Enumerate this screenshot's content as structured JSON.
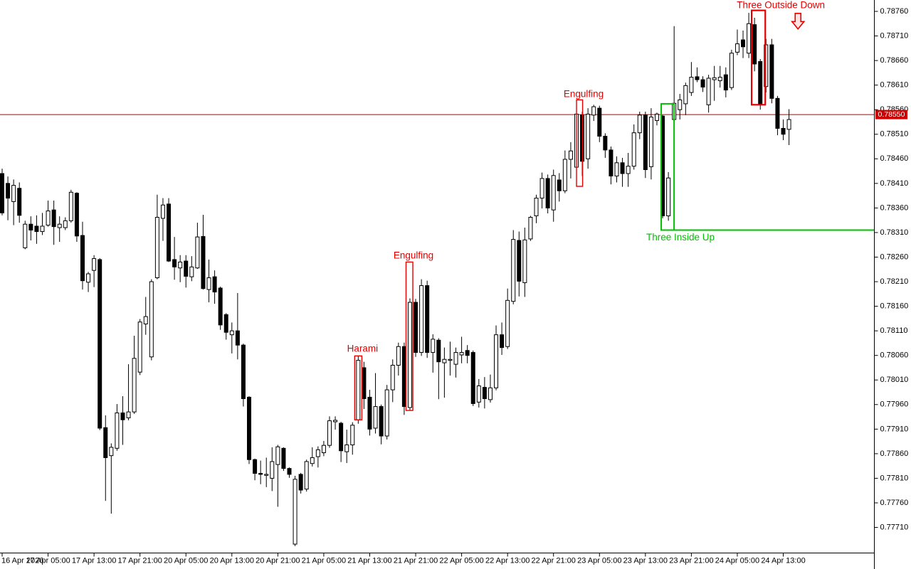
{
  "chart_data": {
    "type": "candlestick",
    "title": "",
    "current_price": {
      "value": 0.7855,
      "label": "0.78550",
      "line_color": "#b50000",
      "badge_bg": "#cc0000",
      "badge_fg": "#ffffff"
    },
    "support_ray": {
      "price": 0.78315,
      "color": "#00c000"
    },
    "y_axis": {
      "max": 0.7876,
      "min": 0.7771,
      "tick_step": 0.0005,
      "decimals": 5,
      "side": "right"
    },
    "x_ticks": [
      {
        "index": 0,
        "label": "16 Apr 2026"
      },
      {
        "index": 8,
        "label": "17 Apr 05:00"
      },
      {
        "index": 16,
        "label": "17 Apr 13:00"
      },
      {
        "index": 24,
        "label": "17 Apr 21:00"
      },
      {
        "index": 32,
        "label": "20 Apr 05:00"
      },
      {
        "index": 40,
        "label": "20 Apr 13:00"
      },
      {
        "index": 48,
        "label": "20 Apr 21:00"
      },
      {
        "index": 56,
        "label": "21 Apr 05:00"
      },
      {
        "index": 64,
        "label": "21 Apr 13:00"
      },
      {
        "index": 72,
        "label": "21 Apr 21:00"
      },
      {
        "index": 80,
        "label": "22 Apr 05:00"
      },
      {
        "index": 88,
        "label": "22 Apr 13:00"
      },
      {
        "index": 96,
        "label": "22 Apr 21:00"
      },
      {
        "index": 104,
        "label": "23 Apr 05:00"
      },
      {
        "index": 112,
        "label": "23 Apr 13:00"
      },
      {
        "index": 120,
        "label": "23 Apr 21:00"
      },
      {
        "index": 128,
        "label": "24 Apr 05:00"
      },
      {
        "index": 136,
        "label": "24 Apr 13:00"
      }
    ],
    "colors": {
      "bull_fill": "#ffffff",
      "bear_fill": "#000000",
      "outline": "#000000",
      "axis": "#000000",
      "pattern_red": "#e60000",
      "pattern_green": "#00c000"
    },
    "candles": [
      [
        0.7843,
        0.7844,
        0.78345,
        0.7835
      ],
      [
        0.7841,
        0.78424,
        0.78335,
        0.7838
      ],
      [
        0.78373,
        0.78418,
        0.78325,
        0.78406
      ],
      [
        0.784,
        0.78412,
        0.7833,
        0.78345
      ],
      [
        0.78279,
        0.78334,
        0.78276,
        0.78327
      ],
      [
        0.78327,
        0.78343,
        0.78294,
        0.78315
      ],
      [
        0.78323,
        0.78345,
        0.78287,
        0.78312
      ],
      [
        0.78312,
        0.7835,
        0.78305,
        0.78323
      ],
      [
        0.78325,
        0.78375,
        0.78322,
        0.78354
      ],
      [
        0.78356,
        0.78375,
        0.78285,
        0.78322
      ],
      [
        0.7832,
        0.78343,
        0.78291,
        0.78327
      ],
      [
        0.7832,
        0.78341,
        0.78315,
        0.78334
      ],
      [
        0.78334,
        0.78397,
        0.7833,
        0.78392
      ],
      [
        0.7839,
        0.78392,
        0.78291,
        0.78303
      ],
      [
        0.78304,
        0.78332,
        0.78194,
        0.78212
      ],
      [
        0.78209,
        0.7823,
        0.78189,
        0.78226
      ],
      [
        0.78233,
        0.78264,
        0.78199,
        0.78257
      ],
      [
        0.78255,
        0.78258,
        0.77908,
        0.77912
      ],
      [
        0.77913,
        0.77938,
        0.77764,
        0.77852
      ],
      [
        0.77856,
        0.77881,
        0.77738,
        0.77873
      ],
      [
        0.77871,
        0.77961,
        0.77866,
        0.77943
      ],
      [
        0.77943,
        0.77977,
        0.77878,
        0.77929
      ],
      [
        0.77933,
        0.78042,
        0.77928,
        0.77945
      ],
      [
        0.77945,
        0.781,
        0.77941,
        0.78054
      ],
      [
        0.78026,
        0.78134,
        0.7802,
        0.78128
      ],
      [
        0.78124,
        0.78179,
        0.78102,
        0.78139
      ],
      [
        0.78057,
        0.78215,
        0.7805,
        0.7821
      ],
      [
        0.78218,
        0.78387,
        0.78215,
        0.78341
      ],
      [
        0.78339,
        0.7838,
        0.78293,
        0.78366
      ],
      [
        0.78368,
        0.7838,
        0.7825,
        0.78252
      ],
      [
        0.78255,
        0.78301,
        0.78214,
        0.7824
      ],
      [
        0.78238,
        0.78264,
        0.78209,
        0.7825
      ],
      [
        0.78252,
        0.78264,
        0.78198,
        0.78221
      ],
      [
        0.7822,
        0.78262,
        0.78211,
        0.7824
      ],
      [
        0.78238,
        0.7833,
        0.78236,
        0.78301
      ],
      [
        0.78302,
        0.78346,
        0.78194,
        0.78196
      ],
      [
        0.78194,
        0.78255,
        0.78168,
        0.78218
      ],
      [
        0.7822,
        0.78233,
        0.78165,
        0.78189
      ],
      [
        0.78197,
        0.782,
        0.78112,
        0.78122
      ],
      [
        0.78143,
        0.78146,
        0.78092,
        0.78107
      ],
      [
        0.78102,
        0.78127,
        0.78064,
        0.7811
      ],
      [
        0.7811,
        0.78187,
        0.78052,
        0.78081
      ],
      [
        0.78081,
        0.78084,
        0.77956,
        0.77972
      ],
      [
        0.77975,
        0.77977,
        0.77839,
        0.77848
      ],
      [
        0.77848,
        0.7785,
        0.77806,
        0.7782
      ],
      [
        0.7782,
        0.77846,
        0.77798,
        0.77818
      ],
      [
        0.77816,
        0.77852,
        0.77792,
        0.77818
      ],
      [
        0.7781,
        0.77873,
        0.77784,
        0.77844
      ],
      [
        0.77838,
        0.77878,
        0.77752,
        0.77874
      ],
      [
        0.77871,
        0.77873,
        0.77825,
        0.7783
      ],
      [
        0.7783,
        0.77832,
        0.77811,
        0.77818
      ],
      [
        0.77676,
        0.77815,
        0.77672,
        0.77808
      ],
      [
        0.77818,
        0.77821,
        0.77779,
        0.77786
      ],
      [
        0.77788,
        0.77848,
        0.77783,
        0.77844
      ],
      [
        0.7784,
        0.77873,
        0.77834,
        0.77852
      ],
      [
        0.77854,
        0.77875,
        0.77832,
        0.77868
      ],
      [
        0.77862,
        0.77886,
        0.77855,
        0.77877
      ],
      [
        0.77877,
        0.77936,
        0.77872,
        0.77927
      ],
      [
        0.77925,
        0.77936,
        0.77909,
        0.77928
      ],
      [
        0.77922,
        0.77925,
        0.77843,
        0.77866
      ],
      [
        0.77864,
        0.77909,
        0.77841,
        0.77878
      ],
      [
        0.77878,
        0.77924,
        0.77858,
        0.77918
      ],
      [
        0.77929,
        0.78059,
        0.77921,
        0.7805
      ],
      [
        0.78035,
        0.78047,
        0.77951,
        0.77972
      ],
      [
        0.77975,
        0.7799,
        0.77897,
        0.7791
      ],
      [
        0.77912,
        0.78024,
        0.77901,
        0.77956
      ],
      [
        0.77956,
        0.7796,
        0.77879,
        0.77896
      ],
      [
        0.77896,
        0.78,
        0.77889,
        0.7799
      ],
      [
        0.7799,
        0.78052,
        0.77965,
        0.7804
      ],
      [
        0.7804,
        0.78086,
        0.78019,
        0.78078
      ],
      [
        0.78078,
        0.78086,
        0.77939,
        0.77956
      ],
      [
        0.77954,
        0.78176,
        0.77949,
        0.78168
      ],
      [
        0.78168,
        0.78175,
        0.78057,
        0.78066
      ],
      [
        0.78066,
        0.78215,
        0.78059,
        0.78202
      ],
      [
        0.78202,
        0.78212,
        0.78055,
        0.78066
      ],
      [
        0.78066,
        0.78103,
        0.78025,
        0.78093
      ],
      [
        0.78091,
        0.78095,
        0.77971,
        0.78047
      ],
      [
        0.78045,
        0.78076,
        0.77974,
        0.78052
      ],
      [
        0.7805,
        0.78088,
        0.78019,
        0.78052
      ],
      [
        0.78042,
        0.78076,
        0.78015,
        0.78066
      ],
      [
        0.78061,
        0.78098,
        0.78044,
        0.78066
      ],
      [
        0.7807,
        0.78081,
        0.78044,
        0.7806
      ],
      [
        0.78066,
        0.7807,
        0.77957,
        0.77962
      ],
      [
        0.77965,
        0.78012,
        0.77954,
        0.77998
      ],
      [
        0.77995,
        0.78016,
        0.77952,
        0.77972
      ],
      [
        0.7797,
        0.78021,
        0.77964,
        0.77994
      ],
      [
        0.77994,
        0.78121,
        0.77989,
        0.78102
      ],
      [
        0.78102,
        0.78127,
        0.78061,
        0.78076
      ],
      [
        0.78078,
        0.78196,
        0.78073,
        0.78172
      ],
      [
        0.7817,
        0.78315,
        0.78164,
        0.78296
      ],
      [
        0.78294,
        0.78312,
        0.7818,
        0.78211
      ],
      [
        0.78208,
        0.7832,
        0.78179,
        0.78295
      ],
      [
        0.78297,
        0.78344,
        0.78293,
        0.78341
      ],
      [
        0.78344,
        0.78387,
        0.78329,
        0.7838
      ],
      [
        0.7838,
        0.78432,
        0.78359,
        0.7842
      ],
      [
        0.7842,
        0.78428,
        0.78349,
        0.7836
      ],
      [
        0.78356,
        0.78438,
        0.78332,
        0.78426
      ],
      [
        0.78417,
        0.78431,
        0.78373,
        0.78395
      ],
      [
        0.78395,
        0.78477,
        0.7839,
        0.78459
      ],
      [
        0.78459,
        0.78494,
        0.7842,
        0.78476
      ],
      [
        0.78443,
        0.7856,
        0.78438,
        0.78551
      ],
      [
        0.78549,
        0.78556,
        0.78425,
        0.78455
      ],
      [
        0.7846,
        0.78563,
        0.7844,
        0.78551
      ],
      [
        0.78549,
        0.7857,
        0.78537,
        0.78566
      ],
      [
        0.78563,
        0.78568,
        0.78494,
        0.78506
      ],
      [
        0.78506,
        0.78512,
        0.78462,
        0.78478
      ],
      [
        0.78478,
        0.78485,
        0.78408,
        0.78425
      ],
      [
        0.78425,
        0.78465,
        0.78412,
        0.78452
      ],
      [
        0.78452,
        0.78462,
        0.78403,
        0.7843
      ],
      [
        0.7843,
        0.78472,
        0.78403,
        0.78445
      ],
      [
        0.78445,
        0.7853,
        0.78438,
        0.78513
      ],
      [
        0.78513,
        0.78556,
        0.785,
        0.78549
      ],
      [
        0.78549,
        0.78556,
        0.78421,
        0.78438
      ],
      [
        0.78444,
        0.78563,
        0.78418,
        0.78545
      ],
      [
        0.78538,
        0.78554,
        0.78528,
        0.78551
      ],
      [
        0.78547,
        0.78549,
        0.78339,
        0.78344
      ],
      [
        0.78344,
        0.78433,
        0.78334,
        0.78421
      ],
      [
        0.7854,
        0.7873,
        0.7851,
        0.78573
      ],
      [
        0.7856,
        0.78592,
        0.7854,
        0.7858
      ],
      [
        0.78572,
        0.78615,
        0.78549,
        0.78609
      ],
      [
        0.78595,
        0.78657,
        0.78588,
        0.78626
      ],
      [
        0.78627,
        0.78646,
        0.78616,
        0.78621
      ],
      [
        0.78621,
        0.78628,
        0.78596,
        0.78606
      ],
      [
        0.7857,
        0.78631,
        0.78554,
        0.78624
      ],
      [
        0.78621,
        0.78649,
        0.78578,
        0.78625
      ],
      [
        0.78619,
        0.78649,
        0.78605,
        0.78626
      ],
      [
        0.78631,
        0.78646,
        0.78585,
        0.786
      ],
      [
        0.78605,
        0.78682,
        0.786,
        0.78675
      ],
      [
        0.78677,
        0.78723,
        0.78671,
        0.78694
      ],
      [
        0.78702,
        0.78721,
        0.78665,
        0.78688
      ],
      [
        0.78675,
        0.78757,
        0.78665,
        0.78735
      ],
      [
        0.78733,
        0.78747,
        0.78638,
        0.78653
      ],
      [
        0.78658,
        0.78663,
        0.7856,
        0.7857
      ],
      [
        0.78607,
        0.78704,
        0.78595,
        0.78692
      ],
      [
        0.78692,
        0.78704,
        0.78573,
        0.78583
      ],
      [
        0.78583,
        0.78588,
        0.78508,
        0.78522
      ],
      [
        0.78522,
        0.7854,
        0.78498,
        0.7851
      ],
      [
        0.7852,
        0.78561,
        0.78488,
        0.7854
      ]
    ],
    "patterns": [
      {
        "label": "Harami",
        "color": "#e60000",
        "box": {
          "from": 62,
          "to": 63,
          "price_top": 0.78059,
          "price_bottom": 0.77929,
          "left_dx": -5,
          "right_dx": -3,
          "stroke": 1.4
        },
        "label_anchor": {
          "index": 62,
          "dx": 6,
          "price": 0.78073
        }
      },
      {
        "label": "Engulfing",
        "color": "#e60000",
        "box": {
          "from": 71,
          "to": 72,
          "price_top": 0.7825,
          "price_bottom": 0.77948,
          "left_dx": -5.5,
          "right_dx": -4,
          "stroke": 1.4
        },
        "label_anchor": {
          "index": 71,
          "dx": 5,
          "price": 0.78262
        }
      },
      {
        "label": "Engulfing",
        "color": "#e60000",
        "box": {
          "from": 100,
          "to": 101,
          "price_top": 0.7858,
          "price_bottom": 0.78404,
          "left_dx": 0,
          "right_dx": 0.5,
          "stroke": 1.4
        },
        "label_anchor": {
          "index": 100,
          "dx": 10,
          "price": 0.78591
        }
      },
      {
        "label": "Three Inside Up",
        "color": "#00c000",
        "box": {
          "from": 115,
          "to": 116,
          "price_top": 0.78572,
          "price_bottom": 0.78315,
          "left_dx": -2,
          "right_dx": 8,
          "stroke": 2
        },
        "ray": {
          "price": 0.78315
        },
        "label_anchor": {
          "index": 115,
          "dx": 25,
          "price": 0.78299
        }
      },
      {
        "label": "Three Outside Down",
        "color": "#e60000",
        "box": {
          "from": 130,
          "to": 132,
          "price_top": 0.78762,
          "price_bottom": 0.7857,
          "left_dx": 4,
          "right_dx": 7,
          "stroke": 2.2
        },
        "arrow": {
          "index": 132,
          "dx": 53,
          "price_top": 0.78756
        },
        "label_anchor": {
          "index": 131,
          "dx": 37,
          "price": 0.78772
        }
      }
    ]
  }
}
